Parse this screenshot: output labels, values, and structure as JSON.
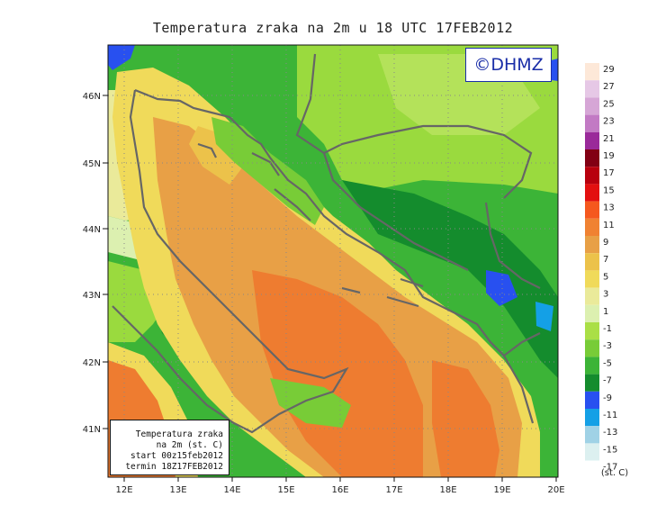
{
  "title": "Temperatura zraka na 2m u 18 UTC 17FEB2012",
  "logo_text": "©DHMZ",
  "info_box": {
    "line1": "Temperatura zraka",
    "line2": "na 2m (st. C)",
    "line3": "start 00z15feb2012",
    "line4": "termin 18Z17FEB2012"
  },
  "lat_labels": [
    "46N",
    "45N",
    "44N",
    "43N",
    "42N",
    "41N"
  ],
  "lon_labels": [
    "12E",
    "13E",
    "14E",
    "15E",
    "16E",
    "17E",
    "18E",
    "19E",
    "20E"
  ],
  "legend": {
    "unit": "(st. C)",
    "levels": [
      "29",
      "27",
      "25",
      "23",
      "21",
      "19",
      "17",
      "15",
      "13",
      "11",
      "9",
      "7",
      "5",
      "3",
      "1",
      "-1",
      "-3",
      "-5",
      "-7",
      "-9",
      "-11",
      "-13",
      "-15",
      "-17"
    ],
    "colors": [
      "#fde8d8",
      "#e6c8e6",
      "#d6a6d6",
      "#c27ac4",
      "#9a2a9a",
      "#820014",
      "#b8000e",
      "#e31010",
      "#f5581e",
      "#f08232",
      "#e8a046",
      "#ecc24a",
      "#f0da5a",
      "#eaea9a",
      "#dcf0b0",
      "#aadf46",
      "#78cc37",
      "#3cb437",
      "#148c2d",
      "#2850f0",
      "#14a0e6",
      "#a0d2e6",
      "#dcf0f0",
      "#ffffff"
    ]
  },
  "colors": {
    "sea_warm": "#e89a3c",
    "sea_hot": "#ee7c30",
    "land_cold": "#39b33a",
    "land_mild": "#9ada3e",
    "coast_line": "#666666"
  }
}
